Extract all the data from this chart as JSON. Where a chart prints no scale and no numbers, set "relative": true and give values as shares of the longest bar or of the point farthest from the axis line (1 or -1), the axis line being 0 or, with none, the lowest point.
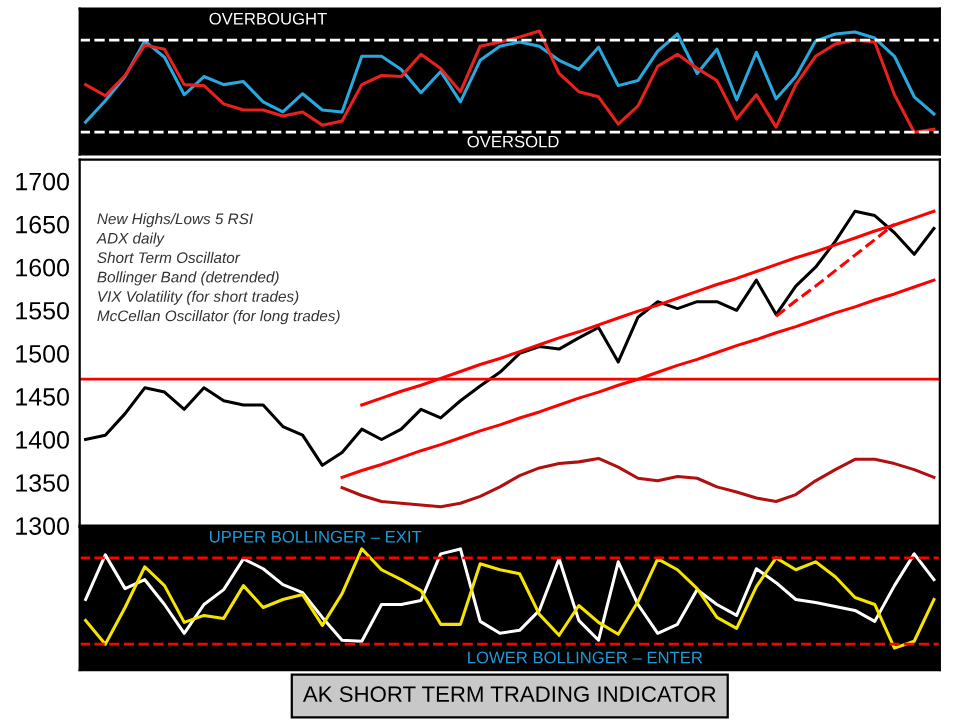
{
  "chart_data": [
    {
      "type": "line",
      "relative": true,
      "tick_labels": false,
      "categories": [
        null,
        null,
        null,
        null,
        null,
        null,
        null,
        null,
        null,
        null,
        null,
        null,
        null,
        null,
        null,
        null,
        null,
        null,
        null,
        null,
        null,
        null,
        null,
        null,
        null,
        null,
        null,
        null,
        null,
        null,
        null,
        null,
        null,
        null,
        null,
        null,
        null,
        null,
        null,
        null,
        null,
        null,
        null,
        null
      ],
      "series": [
        {
          "color": "#29a8e0",
          "values": [
            0.1,
            0.31,
            0.55,
            0.9,
            0.74,
            0.37,
            0.55,
            0.47,
            0.5,
            0.3,
            0.2,
            0.38,
            0.22,
            0.2,
            0.75,
            0.75,
            0.62,
            0.39,
            0.6,
            0.3,
            0.71,
            0.85,
            0.89,
            0.85,
            0.71,
            0.62,
            0.84,
            0.46,
            0.51,
            0.8,
            0.97,
            0.58,
            0.82,
            0.32,
            0.79,
            0.33,
            0.55,
            0.9,
            0.97,
            0.99,
            0.93,
            0.75,
            0.35,
            0.18
          ]
        },
        {
          "color": "#e8211c",
          "values": [
            0.47,
            0.36,
            0.56,
            0.86,
            0.82,
            0.47,
            0.46,
            0.28,
            0.22,
            0.22,
            0.16,
            0.2,
            0.07,
            0.11,
            0.47,
            0.56,
            0.55,
            0.77,
            0.63,
            0.4,
            0.85,
            0.89,
            0.94,
            1,
            0.58,
            0.4,
            0.35,
            0.08,
            0.26,
            0.65,
            0.77,
            0.63,
            0.51,
            0.13,
            0.37,
            0.05,
            0.47,
            0.75,
            0.87,
            0.91,
            0.89,
            0.37,
            0,
            0.03
          ]
        }
      ],
      "ref_lines": [
        {
          "axis": "y",
          "value": 0.91,
          "label": "OVERBOUGHT",
          "color": "#ffffff",
          "line_style": "dashed"
        },
        {
          "axis": "y",
          "value": 0.0,
          "label": "OVERSOLD",
          "color": "#ffffff",
          "line_style": "dashed"
        }
      ]
    },
    {
      "type": "line",
      "tick_labels": "y",
      "ylim": [
        1300,
        1725
      ],
      "yticks": [
        1300,
        1350,
        1400,
        1450,
        1500,
        1550,
        1600,
        1650,
        1700
      ],
      "categories": [
        null,
        null,
        null,
        null,
        null,
        null,
        null,
        null,
        null,
        null,
        null,
        null,
        null,
        null,
        null,
        null,
        null,
        null,
        null,
        null,
        null,
        null,
        null,
        null,
        null,
        null,
        null,
        null,
        null,
        null,
        null,
        null,
        null,
        null,
        null,
        null,
        null,
        null,
        null,
        null,
        null,
        null,
        null,
        null
      ],
      "series": [
        {
          "color": "#000000",
          "values": [
            1400,
            1405,
            1430,
            1460,
            1455,
            1435,
            1460,
            1445,
            1440,
            1440,
            1415,
            1405,
            1370,
            1385,
            1412,
            1400,
            1412,
            1435,
            1425,
            1445,
            1462,
            1478,
            1500,
            1508,
            1505,
            1518,
            1530,
            1490,
            1542,
            1560,
            1552,
            1560,
            1560,
            1550,
            1585,
            1545,
            1578,
            1600,
            1630,
            1665,
            1660,
            1640,
            1615,
            1645
          ]
        },
        {
          "color": "#b01010",
          "values": [
            null,
            null,
            null,
            null,
            null,
            null,
            null,
            null,
            null,
            null,
            null,
            null,
            null,
            1344,
            1335,
            1328,
            1326,
            1324,
            1322,
            1326,
            1334,
            1345,
            1358,
            1367,
            1372,
            1374,
            1378,
            1368,
            1355,
            1352,
            1357,
            1355,
            1345,
            1339,
            1332,
            1328,
            1336,
            1352,
            1365,
            1377,
            1377,
            1372,
            1365,
            1356
          ]
        },
        {
          "color": "#ff0000",
          "values": [
            null,
            null,
            null,
            null,
            null,
            null,
            null,
            null,
            null,
            null,
            null,
            null,
            null,
            null,
            1440,
            1448,
            1456,
            1463,
            1471,
            1479,
            1487,
            1494,
            1502,
            1510,
            1518,
            1525,
            1533,
            1541,
            1549,
            1556,
            1564,
            1572,
            1580,
            1587,
            1595,
            1603,
            1611,
            1618,
            1626,
            1634,
            1642,
            1649,
            1657,
            1665
          ]
        },
        {
          "color": "#ff0000",
          "values": [
            null,
            null,
            null,
            null,
            null,
            null,
            null,
            null,
            null,
            null,
            null,
            null,
            null,
            1356,
            1364,
            1371,
            1379,
            1387,
            1394,
            1402,
            1410,
            1417,
            1425,
            1432,
            1440,
            1448,
            1455,
            1463,
            1470,
            1478,
            1486,
            1493,
            1501,
            1509,
            1516,
            1524,
            1531,
            1539,
            1547,
            1554,
            1562,
            1569,
            1577,
            1585
          ]
        },
        {
          "color": "#ff0000",
          "line_style": "dashed",
          "values": [
            null,
            null,
            null,
            null,
            null,
            null,
            null,
            null,
            null,
            null,
            null,
            null,
            null,
            null,
            null,
            null,
            null,
            null,
            null,
            null,
            null,
            null,
            null,
            null,
            null,
            null,
            null,
            null,
            null,
            null,
            null,
            null,
            null,
            null,
            null,
            1543,
            1561,
            1578,
            1596,
            1614,
            1632,
            1650,
            null,
            null
          ]
        }
      ],
      "ref_lines": [
        {
          "axis": "y",
          "value": 1470,
          "color": "#ff0000",
          "line_style": "solid"
        }
      ],
      "annotations": [
        "New Highs/Lows 5 RSI",
        "ADX daily",
        "Short Term Oscillator",
        "Bollinger Band (detrended)",
        "VIX Volatility (for short trades)",
        "McCellan Oscillator (for long trades)"
      ]
    },
    {
      "type": "line",
      "relative": true,
      "tick_labels": false,
      "categories": [
        null,
        null,
        null,
        null,
        null,
        null,
        null,
        null,
        null,
        null,
        null,
        null,
        null,
        null,
        null,
        null,
        null,
        null,
        null,
        null,
        null,
        null,
        null,
        null,
        null,
        null,
        null,
        null,
        null,
        null,
        null,
        null,
        null,
        null,
        null,
        null,
        null,
        null,
        null,
        null,
        null,
        null,
        null,
        null
      ],
      "series": [
        {
          "color": "#ffffff",
          "values": [
            0.49,
            0.94,
            0.6,
            0.69,
            0.44,
            0.15,
            0.44,
            0.59,
            0.9,
            0.8,
            0.64,
            0.56,
            0.31,
            0.08,
            0.07,
            0.44,
            0.44,
            0.48,
            0.95,
            1,
            0.27,
            0.15,
            0.18,
            0.38,
            0.9,
            0.28,
            0.08,
            0.87,
            0.44,
            0.15,
            0.24,
            0.59,
            0.44,
            0.33,
            0.8,
            0.66,
            0.49,
            0.46,
            0.42,
            0.38,
            0.27,
            0.63,
            0.95,
            0.69
          ]
        },
        {
          "color": "#f5e400",
          "values": [
            0.28,
            0.04,
            0.41,
            0.82,
            0.63,
            0.26,
            0.33,
            0.3,
            0.63,
            0.41,
            0.49,
            0.54,
            0.23,
            0.55,
            1,
            0.79,
            0.69,
            0.58,
            0.24,
            0.24,
            0.85,
            0.79,
            0.75,
            0.34,
            0.13,
            0.43,
            0.26,
            0.14,
            0.47,
            0.9,
            0.79,
            0.6,
            0.31,
            0.2,
            0.62,
            0.91,
            0.79,
            0.87,
            0.72,
            0.51,
            0.44,
            0,
            0.07,
            0.49
          ]
        }
      ],
      "ref_lines": [
        {
          "axis": "y",
          "value": 0.91,
          "label": "UPPER BOLLINGER – EXIT",
          "color": "#ff0000",
          "line_style": "dashed"
        },
        {
          "axis": "y",
          "value": 0.04,
          "label": "LOWER BOLLINGER – ENTER",
          "color": "#ff0000",
          "line_style": "dashed"
        }
      ],
      "annotations": [
        "AK SHORT TERM TRADING INDICATOR"
      ]
    }
  ]
}
